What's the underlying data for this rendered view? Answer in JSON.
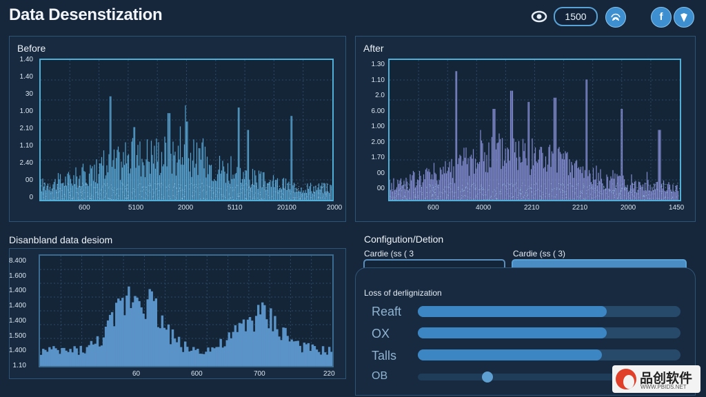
{
  "header": {
    "title": "Data Desenstization",
    "counter_value": "1500",
    "icons": [
      "eye-icon",
      "fingerprint-icon",
      "facebook-icon",
      "shield-icon"
    ],
    "btn_f": "f"
  },
  "before": {
    "title": "Before",
    "y_labels": [
      "1.40",
      "1.40",
      "30",
      "1.00",
      "2.10",
      "1.10",
      "2.40",
      "00",
      "0"
    ],
    "x_labels": [
      "600",
      "5100",
      "2000",
      "5110",
      "20100",
      "2000"
    ]
  },
  "after": {
    "title": "After",
    "y_labels": [
      "1.30",
      "1.10",
      "2.0",
      "6.00",
      "1.00",
      "2.00",
      "1.70",
      "00",
      "00"
    ],
    "x_labels": [
      "600",
      "4000",
      "2210",
      "2210",
      "2000",
      "1450"
    ]
  },
  "distribution": {
    "title": "Disanbland data desiom",
    "y_labels": [
      "8.400",
      "1.600",
      "1.400",
      "1.400",
      "1.400",
      "1.500",
      "1.400",
      "1.10"
    ],
    "x_labels": [
      "60",
      "600",
      "700",
      "220"
    ]
  },
  "config": {
    "title": "Configution/Detion",
    "field1_label": "Cardie (ss ( 3",
    "field2_label": "Cardie (ss ( 3)",
    "loss_title": "Loss of derlignization",
    "rows": [
      {
        "label": "Reaft",
        "value": 0.72
      },
      {
        "label": "OX",
        "value": 0.72
      },
      {
        "label": "Talls",
        "value": 0.7
      }
    ],
    "slider": {
      "label": "OB",
      "value": 0.31
    }
  },
  "watermark": {
    "brand": "品创软件",
    "url": "WWW.PBIDS.NET"
  },
  "colors": {
    "before_series": "#5fb0e0",
    "after_series": "#8f95e0",
    "dist_series": "#5a93c8",
    "accent": "#3d86c4"
  },
  "chart_data": [
    {
      "type": "area",
      "title": "Before",
      "x": [
        "600",
        "5100",
        "2000",
        "5110",
        "20100",
        "2000"
      ]
    },
    {
      "type": "area",
      "title": "After",
      "x": [
        "600",
        "4000",
        "2210",
        "2210",
        "2000",
        "1450"
      ]
    },
    {
      "type": "bar",
      "title": "Disanbland data desiom",
      "x": [
        "60",
        "600",
        "700",
        "220"
      ]
    }
  ]
}
